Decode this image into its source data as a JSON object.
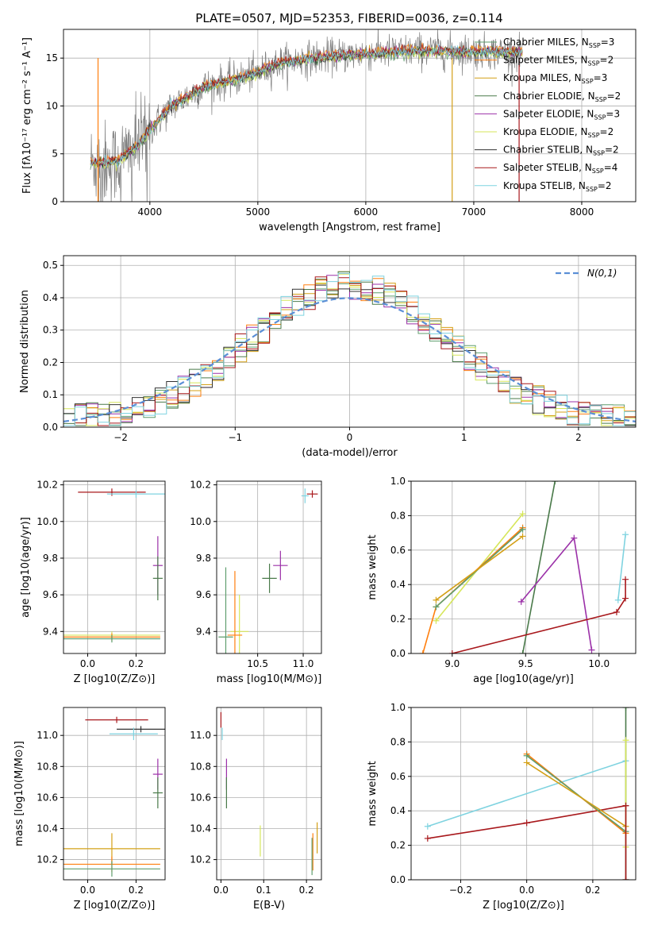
{
  "title": "PLATE=0507, MJD=52353, FIBERID=0036, z=0.114",
  "colors": {
    "chabrier_miles": "#5f9e6e",
    "salpeter_miles": "#ff7f0e",
    "kroupa_miles": "#d4a017",
    "chabrier_elodie": "#4a7a4a",
    "salpeter_elodie": "#9b30a8",
    "kroupa_elodie": "#d6e65a",
    "chabrier_stelib": "#333333",
    "salpeter_stelib": "#a8181c",
    "kroupa_stelib": "#7fd3e0",
    "data": "#808080",
    "normal": "#5b8fd6",
    "grid": "#b0b0b0"
  },
  "legend": [
    {
      "label": "Chabrier MILES, N",
      "sub": "SSP",
      "suffix": "=3",
      "color_key": "chabrier_miles"
    },
    {
      "label": "Salpeter MILES, N",
      "sub": "SSP",
      "suffix": "=2",
      "color_key": "salpeter_miles"
    },
    {
      "label": "Kroupa MILES, N",
      "sub": "SSP",
      "suffix": "=3",
      "color_key": "kroupa_miles"
    },
    {
      "label": "Chabrier ELODIE, N",
      "sub": "SSP",
      "suffix": "=2",
      "color_key": "chabrier_elodie"
    },
    {
      "label": "Salpeter ELODIE, N",
      "sub": "SSP",
      "suffix": "=3",
      "color_key": "salpeter_elodie"
    },
    {
      "label": "Kroupa ELODIE, N",
      "sub": "SSP",
      "suffix": "=2",
      "color_key": "kroupa_elodie"
    },
    {
      "label": "Chabrier STELIB, N",
      "sub": "SSP",
      "suffix": "=2",
      "color_key": "chabrier_stelib"
    },
    {
      "label": "Salpeter STELIB, N",
      "sub": "SSP",
      "suffix": "=4",
      "color_key": "salpeter_stelib"
    },
    {
      "label": "Kroupa STELIB, N",
      "sub": "SSP",
      "suffix": "=2",
      "color_key": "kroupa_stelib"
    }
  ],
  "chart_data": [
    {
      "id": "spectrum",
      "type": "line",
      "xlabel": "wavelength [Angstrom, rest frame]",
      "ylabel": "Flux [fλ10⁻¹⁷ erg cm⁻² s⁻¹ A⁻¹]",
      "xlim": [
        3200,
        8500
      ],
      "ylim": [
        0,
        18
      ],
      "xticks": [
        4000,
        5000,
        6000,
        7000,
        8000
      ],
      "yticks": [
        0,
        5,
        10,
        15
      ],
      "data_range": [
        3450,
        7450
      ],
      "continuum": [
        [
          3450,
          4.0
        ],
        [
          3700,
          4.2
        ],
        [
          3900,
          6.0
        ],
        [
          4000,
          7.5
        ],
        [
          4200,
          10.0
        ],
        [
          4500,
          12.0
        ],
        [
          4800,
          12.8
        ],
        [
          5000,
          13.5
        ],
        [
          5200,
          14.5
        ],
        [
          5500,
          15.0
        ],
        [
          6000,
          15.5
        ],
        [
          6500,
          15.8
        ],
        [
          7000,
          15.7
        ],
        [
          7450,
          15.6
        ]
      ]
    },
    {
      "id": "residuals",
      "type": "histogram",
      "xlabel": "(data-model)/error",
      "ylabel": "Normed distribution",
      "xlim": [
        -2.5,
        2.5
      ],
      "ylim": [
        0,
        0.53
      ],
      "xticks": [
        -2,
        -1,
        0,
        1,
        2
      ],
      "yticks": [
        0.0,
        0.1,
        0.2,
        0.3,
        0.4,
        0.5
      ],
      "legend": "N(0,1)",
      "bin_width": 0.1
    },
    {
      "id": "age_vs_Z",
      "type": "errorbar",
      "xlabel": "Z [log10(Z/Z⊙)]",
      "ylabel": "age  [log10(age/yr)]",
      "xlim": [
        -0.1,
        0.32
      ],
      "ylim": [
        9.28,
        10.22
      ],
      "xticks": [
        0.0,
        0.2
      ],
      "yticks": [
        9.4,
        9.6,
        9.8,
        10.0,
        10.2
      ],
      "points": [
        {
          "x": 0.1,
          "y": 10.16,
          "xerr": 0.14,
          "yerr": 0.02,
          "color_key": "salpeter_stelib"
        },
        {
          "x": 0.2,
          "y": 10.15,
          "xerr": 0.12,
          "yerr": 0.02,
          "color_key": "kroupa_stelib"
        },
        {
          "x": 0.29,
          "y": 9.76,
          "xerr": 0.02,
          "yerr": 0.16,
          "color_key": "salpeter_elodie"
        },
        {
          "x": 0.29,
          "y": 9.69,
          "xerr": 0.02,
          "yerr": 0.12,
          "color_key": "chabrier_elodie"
        },
        {
          "x": 0.1,
          "y": 9.38,
          "xerr": 0.2,
          "yerr": 0.02,
          "color_key": "kroupa_elodie"
        },
        {
          "x": 0.1,
          "y": 9.37,
          "xerr": 0.2,
          "yerr": 0.02,
          "color_key": "salpeter_miles"
        },
        {
          "x": 0.1,
          "y": 9.36,
          "xerr": 0.2,
          "yerr": 0.02,
          "color_key": "chabrier_miles"
        }
      ]
    },
    {
      "id": "age_vs_mass",
      "type": "errorbar",
      "xlabel": "mass [log10(M/M⊙)]",
      "ylabel": "",
      "xlim": [
        10.05,
        11.2
      ],
      "ylim": [
        9.28,
        10.22
      ],
      "xticks": [
        10.5,
        11.0
      ],
      "yticks": [
        9.4,
        9.6,
        9.8,
        10.0,
        10.2
      ],
      "points": [
        {
          "x": 11.1,
          "y": 10.15,
          "xerr": 0.06,
          "yerr": 0.02,
          "color_key": "salpeter_stelib"
        },
        {
          "x": 11.02,
          "y": 10.14,
          "xerr": 0.04,
          "yerr": 0.04,
          "color_key": "kroupa_stelib"
        },
        {
          "x": 10.75,
          "y": 9.76,
          "xerr": 0.08,
          "yerr": 0.08,
          "color_key": "salpeter_elodie"
        },
        {
          "x": 10.63,
          "y": 9.69,
          "xerr": 0.08,
          "yerr": 0.08,
          "color_key": "chabrier_elodie"
        },
        {
          "x": 10.3,
          "y": 9.4,
          "xerr": 0.1,
          "yerr": 0.2,
          "color_key": "kroupa_elodie"
        },
        {
          "x": 10.25,
          "y": 9.38,
          "xerr": 0.08,
          "yerr": 0.35,
          "color_key": "salpeter_miles"
        },
        {
          "x": 10.15,
          "y": 9.37,
          "xerr": 0.08,
          "yerr": 0.38,
          "color_key": "chabrier_miles"
        }
      ]
    },
    {
      "id": "mass_weight_vs_age",
      "type": "line",
      "xlabel": "age  [log10(age/yr)]",
      "ylabel": "mass weight",
      "xlim": [
        8.72,
        10.25
      ],
      "ylim": [
        0,
        1.0
      ],
      "xticks": [
        9.0,
        9.5,
        10.0
      ],
      "yticks": [
        0.0,
        0.2,
        0.4,
        0.6,
        0.8,
        1.0
      ],
      "series": [
        {
          "color_key": "chabrier_elodie",
          "points": [
            [
              9.48,
              0.0
            ],
            [
              9.7,
              1.0
            ]
          ]
        },
        {
          "color_key": "salpeter_elodie",
          "points": [
            [
              9.47,
              0.3
            ],
            [
              9.83,
              0.67
            ],
            [
              9.95,
              0.02
            ]
          ]
        },
        {
          "color_key": "salpeter_stelib",
          "points": [
            [
              9.0,
              0.0
            ],
            [
              10.12,
              0.24
            ],
            [
              10.18,
              0.32
            ],
            [
              10.18,
              0.43
            ]
          ]
        },
        {
          "color_key": "kroupa_stelib",
          "points": [
            [
              10.13,
              0.31
            ],
            [
              10.18,
              0.69
            ]
          ]
        },
        {
          "color_key": "kroupa_elodie",
          "points": [
            [
              8.89,
              0.19
            ],
            [
              9.48,
              0.81
            ]
          ]
        },
        {
          "color_key": "salpeter_miles",
          "points": [
            [
              8.8,
              0.0
            ],
            [
              8.89,
              0.27
            ],
            [
              9.48,
              0.73
            ]
          ]
        },
        {
          "color_key": "chabrier_miles",
          "points": [
            [
              8.89,
              0.27
            ],
            [
              9.48,
              0.72
            ]
          ]
        },
        {
          "color_key": "kroupa_miles",
          "points": [
            [
              8.89,
              0.31
            ],
            [
              9.48,
              0.68
            ]
          ]
        }
      ]
    },
    {
      "id": "mass_vs_Z",
      "type": "errorbar",
      "xlabel": "Z [log10(Z/Z⊙)]",
      "ylabel": "mass [log10(M/M⊙)]",
      "xlim": [
        -0.1,
        0.32
      ],
      "ylim": [
        10.07,
        11.18
      ],
      "xticks": [
        0.0,
        0.2
      ],
      "yticks": [
        10.2,
        10.4,
        10.6,
        10.8,
        11.0
      ],
      "points": [
        {
          "x": 0.12,
          "y": 11.1,
          "xerr": 0.13,
          "yerr": 0.02,
          "color_key": "salpeter_stelib"
        },
        {
          "x": 0.22,
          "y": 11.04,
          "xerr": 0.1,
          "yerr": 0.02,
          "color_key": "chabrier_stelib"
        },
        {
          "x": 0.19,
          "y": 11.01,
          "xerr": 0.1,
          "yerr": 0.04,
          "color_key": "kroupa_stelib"
        },
        {
          "x": 0.29,
          "y": 10.75,
          "xerr": 0.02,
          "yerr": 0.1,
          "color_key": "salpeter_elodie"
        },
        {
          "x": 0.29,
          "y": 10.63,
          "xerr": 0.02,
          "yerr": 0.1,
          "color_key": "chabrier_elodie"
        },
        {
          "x": 0.1,
          "y": 10.27,
          "xerr": 0.2,
          "yerr": 0.1,
          "color_key": "kroupa_miles"
        },
        {
          "x": 0.1,
          "y": 10.17,
          "xerr": 0.2,
          "yerr": 0.05,
          "color_key": "salpeter_miles"
        },
        {
          "x": 0.1,
          "y": 10.14,
          "xerr": 0.2,
          "yerr": 0.05,
          "color_key": "chabrier_miles"
        }
      ]
    },
    {
      "id": "mass_vs_ebv",
      "type": "errorbar",
      "xlabel": "E(B-V)",
      "ylabel": "",
      "xlim": [
        -0.01,
        0.235
      ],
      "ylim": [
        10.07,
        11.18
      ],
      "xticks": [
        0.0,
        0.1,
        0.2
      ],
      "yticks": [
        10.2,
        10.4,
        10.6,
        10.8,
        11.0
      ],
      "points": [
        {
          "x": 0.0,
          "y": 11.1,
          "yerr": 0.05,
          "color_key": "salpeter_stelib"
        },
        {
          "x": 0.003,
          "y": 11.01,
          "yerr": 0.04,
          "color_key": "kroupa_stelib"
        },
        {
          "x": 0.013,
          "y": 10.75,
          "yerr": 0.1,
          "color_key": "salpeter_elodie"
        },
        {
          "x": 0.013,
          "y": 10.63,
          "yerr": 0.1,
          "color_key": "chabrier_elodie"
        },
        {
          "x": 0.092,
          "y": 10.32,
          "yerr": 0.1,
          "color_key": "kroupa_elodie"
        },
        {
          "x": 0.225,
          "y": 10.34,
          "yerr": 0.1,
          "color_key": "kroupa_miles"
        },
        {
          "x": 0.215,
          "y": 10.25,
          "yerr": 0.12,
          "color_key": "salpeter_miles"
        },
        {
          "x": 0.213,
          "y": 10.22,
          "yerr": 0.12,
          "color_key": "chabrier_miles"
        }
      ]
    },
    {
      "id": "mass_weight_vs_Z",
      "type": "line",
      "xlabel": "Z [log10(Z/Z⊙)]",
      "ylabel": "mass weight",
      "xlim": [
        -0.35,
        0.33
      ],
      "ylim": [
        0,
        1.0
      ],
      "xticks": [
        -0.2,
        0.0,
        0.2
      ],
      "yticks": [
        0.0,
        0.2,
        0.4,
        0.6,
        0.8,
        1.0
      ],
      "series": [
        {
          "color_key": "kroupa_stelib",
          "points": [
            [
              -0.3,
              0.31
            ],
            [
              0.3,
              0.69
            ]
          ]
        },
        {
          "color_key": "salpeter_stelib",
          "points": [
            [
              -0.3,
              0.24
            ],
            [
              0.0,
              0.33
            ],
            [
              0.3,
              0.43
            ]
          ]
        },
        {
          "color_key": "salpeter_miles",
          "points": [
            [
              0.0,
              0.73
            ],
            [
              0.3,
              0.27
            ]
          ]
        },
        {
          "color_key": "chabrier_miles",
          "points": [
            [
              0.0,
              0.72
            ],
            [
              0.3,
              0.28
            ]
          ]
        },
        {
          "color_key": "kroupa_miles",
          "points": [
            [
              0.0,
              0.68
            ],
            [
              0.3,
              0.31
            ]
          ]
        },
        {
          "color_key": "chabrier_elodie",
          "points": [
            [
              0.3,
              0.0
            ],
            [
              0.3,
              1.0
            ]
          ]
        },
        {
          "color_key": "kroupa_elodie",
          "points": [
            [
              0.3,
              0.19
            ],
            [
              0.3,
              0.81
            ]
          ]
        },
        {
          "color_key": "salpeter_stelib",
          "points": [
            [
              0.3,
              0.0
            ],
            [
              0.3,
              0.43
            ]
          ]
        }
      ]
    }
  ]
}
